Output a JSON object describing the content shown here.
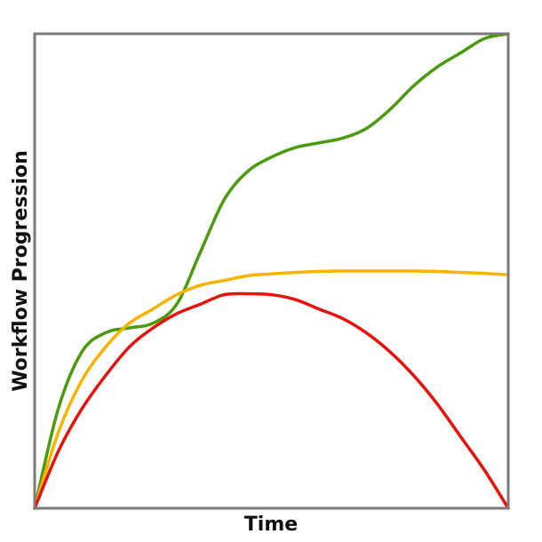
{
  "chart_data": {
    "type": "line",
    "title": "",
    "xlabel": "Time",
    "ylabel": "Workflow Progression",
    "xlim": [
      0,
      1
    ],
    "ylim": [
      0,
      1
    ],
    "grid": false,
    "legend": "none",
    "x": [
      0,
      0.05,
      0.1,
      0.15,
      0.2,
      0.25,
      0.3,
      0.35,
      0.4,
      0.45,
      0.5,
      0.55,
      0.6,
      0.65,
      0.7,
      0.75,
      0.8,
      0.85,
      0.9,
      0.95,
      1
    ],
    "series": [
      {
        "color": "#4a9a0e",
        "values": [
          0,
          0.21,
          0.33,
          0.37,
          0.38,
          0.39,
          0.43,
          0.54,
          0.65,
          0.71,
          0.74,
          0.76,
          0.77,
          0.78,
          0.8,
          0.84,
          0.89,
          0.93,
          0.96,
          0.99,
          1.0
        ]
      },
      {
        "color": "#f5b400",
        "values": [
          0,
          0.16,
          0.27,
          0.34,
          0.39,
          0.42,
          0.45,
          0.47,
          0.48,
          0.49,
          0.494,
          0.497,
          0.499,
          0.5,
          0.5,
          0.5,
          0.5,
          0.499,
          0.497,
          0.495,
          0.492
        ]
      },
      {
        "color": "#e8120c",
        "values": [
          0,
          0.12,
          0.21,
          0.28,
          0.34,
          0.38,
          0.41,
          0.43,
          0.45,
          0.452,
          0.45,
          0.44,
          0.42,
          0.4,
          0.37,
          0.33,
          0.28,
          0.22,
          0.15,
          0.08,
          0
        ]
      }
    ]
  }
}
